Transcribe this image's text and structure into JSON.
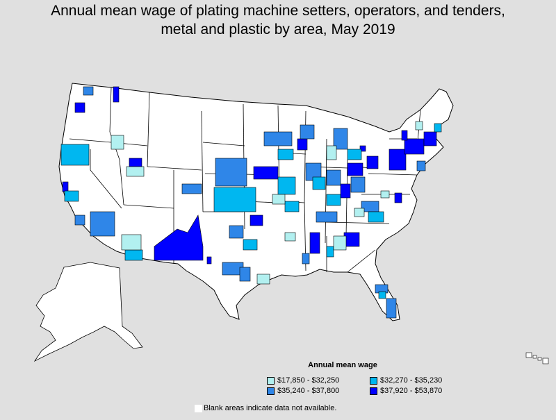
{
  "title_line1": "Annual mean wage of plating machine setters, operators, and tenders,",
  "title_line2": "metal and plastic by area, May 2019",
  "legend": {
    "title": "Annual mean wage",
    "items": [
      {
        "label": "$17,850 - $32,250",
        "color": "#b2f0f0"
      },
      {
        "label": "$32,270 - $35,230",
        "color": "#00b7f0"
      },
      {
        "label": "$35,240 - $37,800",
        "color": "#2f86e8"
      },
      {
        "label": "$37,920 - $53,870",
        "color": "#0000ff"
      }
    ]
  },
  "note": "Blank areas indicate data not available.",
  "colors": {
    "background": "#e0e0e0",
    "no_data": "#ffffff",
    "border": "#000000"
  }
}
